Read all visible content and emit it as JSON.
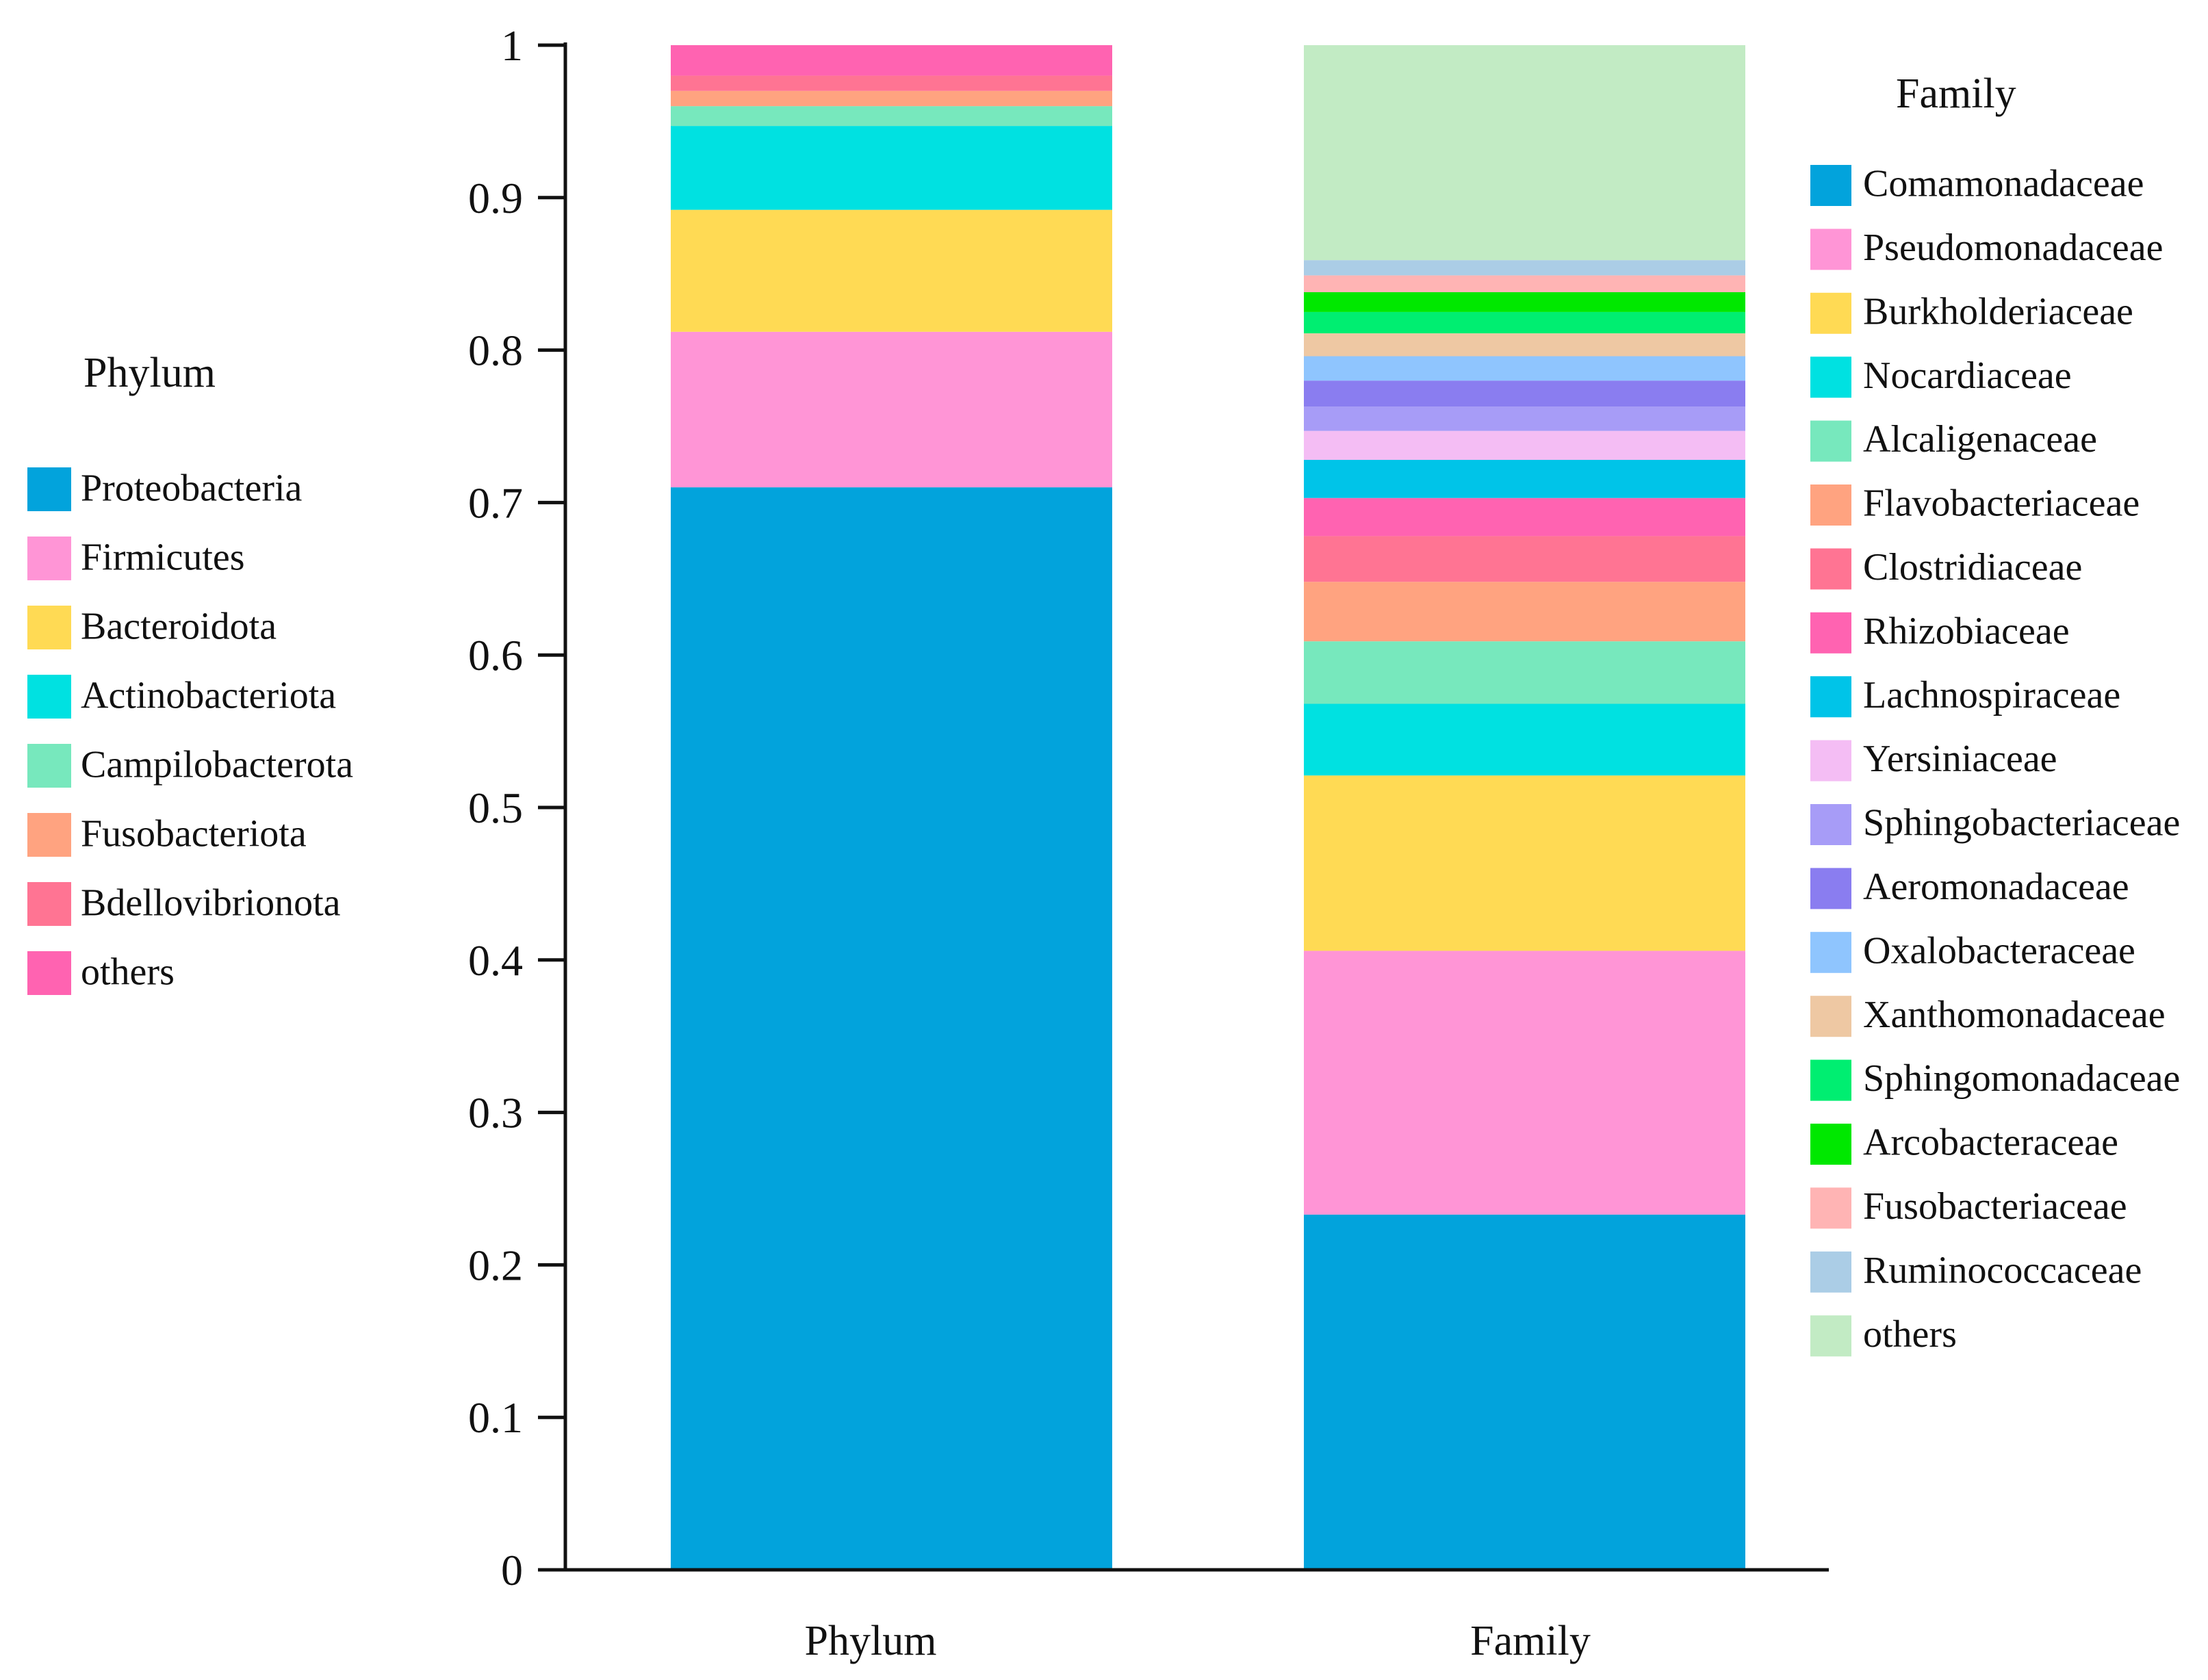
{
  "chart_data": {
    "type": "bar",
    "stacked": true,
    "categories": [
      "Phylum",
      "Family"
    ],
    "ylim": [
      0,
      1
    ],
    "yticks": [
      "0",
      "0.1",
      "0.2",
      "0.3",
      "0.4",
      "0.5",
      "0.6",
      "0.7",
      "0.8",
      "0.9",
      "1"
    ],
    "xlabel": "",
    "ylabel": "",
    "grid": false,
    "legends": [
      {
        "title": "Phylum",
        "placement": "left",
        "entries": [
          {
            "name": "Proteobacteria",
            "color": "#02a3dc"
          },
          {
            "name": "Firmicutes",
            "color": "#ff95d6"
          },
          {
            "name": "Bacteroidota",
            "color": "#ffda54"
          },
          {
            "name": "Actinobacteriota",
            "color": "#00e1e1"
          },
          {
            "name": "Campilobacterota",
            "color": "#77e8bd"
          },
          {
            "name": "Fusobacteriota",
            "color": "#ffa380"
          },
          {
            "name": "Bdellovibrionota",
            "color": "#ff7493"
          },
          {
            "name": "others",
            "color": "#ff63b1"
          }
        ]
      },
      {
        "title": "Family",
        "placement": "right",
        "entries": [
          {
            "name": "Comamonadaceae",
            "color": "#02a3dc"
          },
          {
            "name": "Pseudomonadaceae",
            "color": "#ff95d6"
          },
          {
            "name": "Burkholderiaceae",
            "color": "#ffda54"
          },
          {
            "name": "Nocardiaceae",
            "color": "#00e1e1"
          },
          {
            "name": "Alcaligenaceae",
            "color": "#77e8bd"
          },
          {
            "name": "Flavobacteriaceae",
            "color": "#ffa380"
          },
          {
            "name": "Clostridiaceae",
            "color": "#ff7493"
          },
          {
            "name": "Rhizobiaceae",
            "color": "#ff63b1"
          },
          {
            "name": "Lachnospiraceae",
            "color": "#00c4e8"
          },
          {
            "name": "Yersiniaceae",
            "color": "#f4bdf4"
          },
          {
            "name": "Sphingobacteriaceae",
            "color": "#a79cf7"
          },
          {
            "name": "Aeromonadaceae",
            "color": "#8a7df0"
          },
          {
            "name": "Oxalobacteraceae",
            "color": "#8fc5fe"
          },
          {
            "name": "Xanthomonadaceae",
            "color": "#eec8a3"
          },
          {
            "name": "Sphingomonadaceae",
            "color": "#00ee71"
          },
          {
            "name": "Arcobacteraceae",
            "color": "#00e800"
          },
          {
            "name": "Fusobacteriaceae",
            "color": "#ffb4b4"
          },
          {
            "name": "Ruminococcaceae",
            "color": "#abcde6"
          },
          {
            "name": "others",
            "color": "#c2ebc4"
          }
        ]
      }
    ],
    "series_by_category": [
      {
        "category": "Phylum",
        "series": [
          {
            "name": "Proteobacteria",
            "value": 0.71
          },
          {
            "name": "Firmicutes",
            "value": 0.102
          },
          {
            "name": "Bacteroidota",
            "value": 0.08
          },
          {
            "name": "Actinobacteriota",
            "value": 0.055
          },
          {
            "name": "Campilobacterota",
            "value": 0.013
          },
          {
            "name": "Fusobacteriota",
            "value": 0.01
          },
          {
            "name": "Bdellovibrionota",
            "value": 0.01
          },
          {
            "name": "others",
            "value": 0.02
          }
        ]
      },
      {
        "category": "Family",
        "series": [
          {
            "name": "Comamonadaceae",
            "value": 0.233
          },
          {
            "name": "Pseudomonadaceae",
            "value": 0.173
          },
          {
            "name": "Burkholderiaceae",
            "value": 0.115
          },
          {
            "name": "Nocardiaceae",
            "value": 0.047
          },
          {
            "name": "Alcaligenaceae",
            "value": 0.041
          },
          {
            "name": "Flavobacteriaceae",
            "value": 0.039
          },
          {
            "name": "Clostridiaceae",
            "value": 0.03
          },
          {
            "name": "Rhizobiaceae",
            "value": 0.025
          },
          {
            "name": "Lachnospiraceae",
            "value": 0.025
          },
          {
            "name": "Yersiniaceae",
            "value": 0.019
          },
          {
            "name": "Sphingobacteriaceae",
            "value": 0.016
          },
          {
            "name": "Aeromonadaceae",
            "value": 0.017
          },
          {
            "name": "Oxalobacteraceae",
            "value": 0.016
          },
          {
            "name": "Xanthomonadaceae",
            "value": 0.015
          },
          {
            "name": "Sphingomonadaceae",
            "value": 0.014
          },
          {
            "name": "Arcobacteraceae",
            "value": 0.013
          },
          {
            "name": "Fusobacteriaceae",
            "value": 0.011
          },
          {
            "name": "Ruminococcaceae",
            "value": 0.01
          },
          {
            "name": "others",
            "value": 0.141
          }
        ]
      }
    ]
  }
}
